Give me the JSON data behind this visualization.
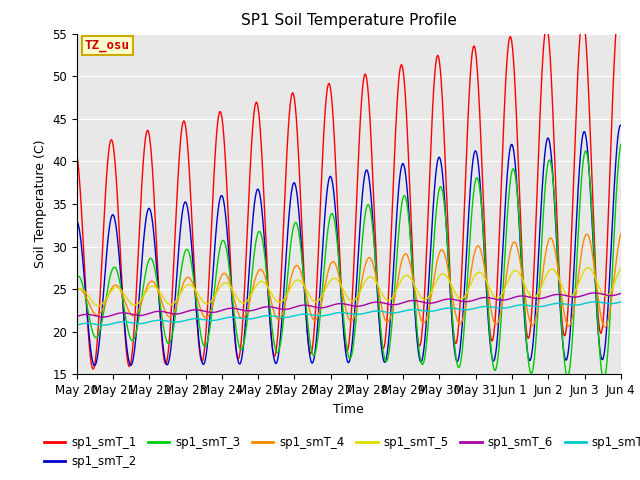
{
  "title": "SP1 Soil Temperature Profile",
  "xlabel": "Time",
  "ylabel": "Soil Temperature (C)",
  "ylim": [
    15,
    55
  ],
  "annotation_text": "TZ_osu",
  "annotation_color": "#cc0000",
  "annotation_bg": "#ffffcc",
  "annotation_border": "#ccaa00",
  "series_colors": {
    "sp1_smT_1": "#ff0000",
    "sp1_smT_2": "#0000cc",
    "sp1_smT_3": "#00cc00",
    "sp1_smT_4": "#ff8800",
    "sp1_smT_5": "#dddd00",
    "sp1_smT_6": "#aa00aa",
    "sp1_smT_7": "#00cccc"
  },
  "bg_color": "#e8e8e8",
  "x_tick_labels": [
    "May 20",
    "May 21",
    "May 22",
    "May 23",
    "May 24",
    "May 25",
    "May 26",
    "May 27",
    "May 28",
    "May 29",
    "May 30",
    "May 31",
    "Jun 1",
    "Jun 2",
    "Jun 3",
    "Jun 4"
  ],
  "yticks": [
    15,
    20,
    25,
    30,
    35,
    40,
    45,
    50,
    55
  ]
}
